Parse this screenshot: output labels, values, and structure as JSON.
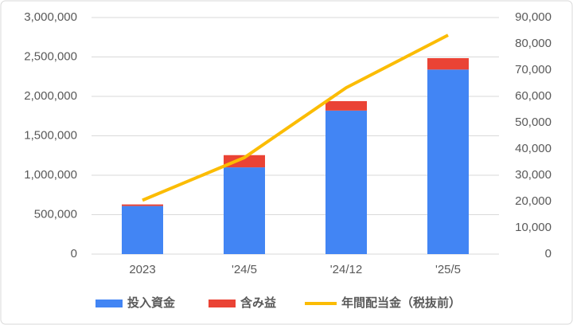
{
  "chart_data": {
    "type": "bar_line",
    "categories": [
      "2023",
      "'24/5",
      "'24/12",
      "'25/5"
    ],
    "series": [
      {
        "name": "投入資金",
        "color": "#4285f4",
        "type": "bar",
        "values": [
          610000,
          1100000,
          1820000,
          2340000
        ]
      },
      {
        "name": "含み益",
        "color": "#ea4335",
        "type": "bar",
        "values": [
          20000,
          155000,
          120000,
          145000
        ]
      },
      {
        "name": "年間配当金（税抜前）",
        "color": "#fbbc04",
        "type": "line",
        "axis": "y2",
        "values": [
          20500,
          36700,
          63300,
          83300
        ]
      }
    ],
    "stacked": true,
    "ylim": [
      0,
      3000000
    ],
    "yticks": [
      0,
      {
        "value": 500000,
        "label": "500,000"
      },
      {
        "value": 1000000,
        "label": "1,000,000"
      },
      {
        "value": 1500000,
        "label": "1,500,000"
      },
      {
        "value": 2000000,
        "label": "2,000,000"
      },
      {
        "value": 2500000,
        "label": "2,500,000"
      },
      {
        "value": 3000000,
        "label": "3,000,000"
      }
    ],
    "y2lim": [
      0,
      90000
    ],
    "y2ticks": [
      0,
      {
        "value": 10000,
        "label": "10,000"
      },
      {
        "value": 20000,
        "label": "20,000"
      },
      {
        "value": 30000,
        "label": "30,000"
      },
      {
        "value": 40000,
        "label": "40,000"
      },
      {
        "value": 50000,
        "label": "50,000"
      },
      {
        "value": 60000,
        "label": "60,000"
      },
      {
        "value": 70000,
        "label": "70,000"
      },
      {
        "value": 80000,
        "label": "80,000"
      },
      {
        "value": 90000,
        "label": "90,000"
      }
    ],
    "grid": true,
    "legend": "bottom"
  }
}
